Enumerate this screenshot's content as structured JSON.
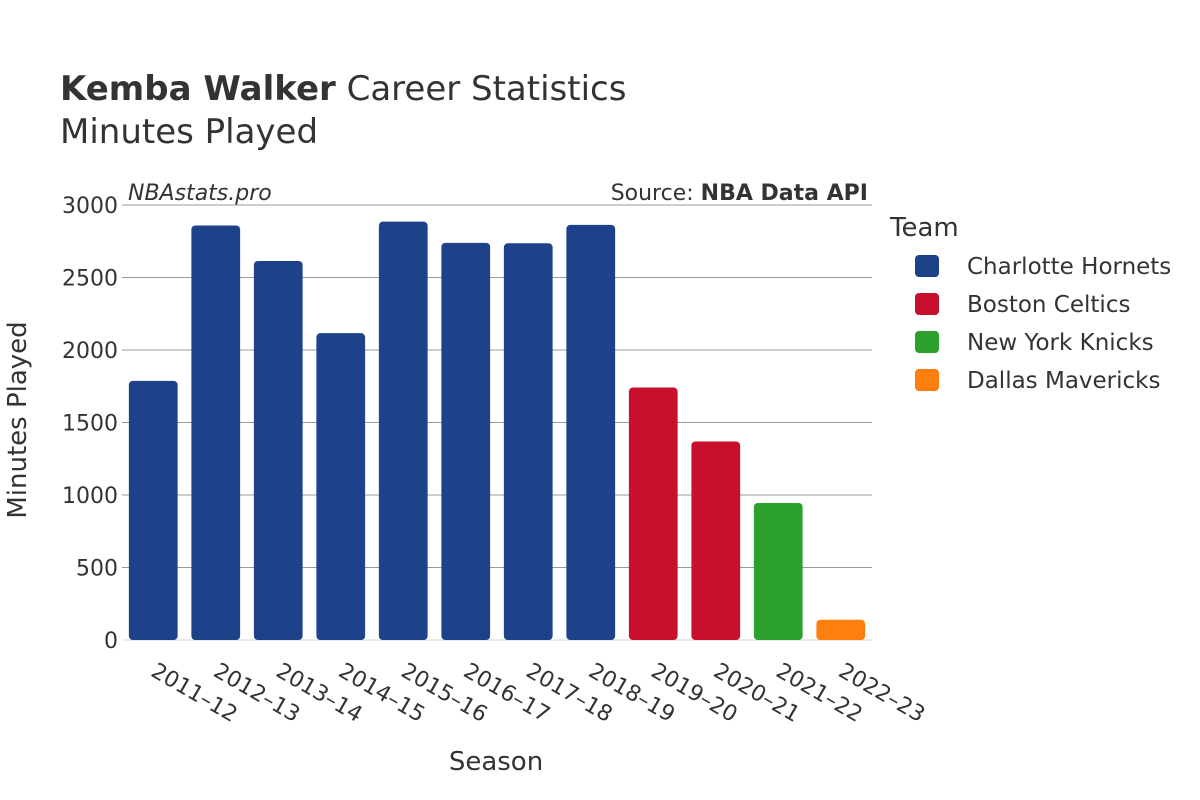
{
  "title": {
    "player": "Kemba Walker",
    "rest": " Career Statistics",
    "metric": "Minutes Played"
  },
  "watermark": "NBAstats.pro",
  "source": {
    "prefix": "Source: ",
    "name": "NBA Data API"
  },
  "legend_title": "Team",
  "teams": [
    {
      "name": "Charlotte Hornets",
      "color": "#1d428a"
    },
    {
      "name": "Boston Celtics",
      "color": "#c8102e"
    },
    {
      "name": "New York Knicks",
      "color": "#2ca02c"
    },
    {
      "name": "Dallas Mavericks",
      "color": "#ff7f0e"
    }
  ],
  "chart_data": {
    "type": "bar",
    "xlabel": "Season",
    "ylabel": "Minutes Played",
    "ylim": [
      0,
      3000
    ],
    "yticks": [
      0,
      500,
      1000,
      1500,
      2000,
      2500,
      3000
    ],
    "grid": true,
    "legend_position": "right",
    "categories": [
      "2011–12",
      "2012–13",
      "2013–14",
      "2014–15",
      "2015–16",
      "2016–17",
      "2017–18",
      "2018–19",
      "2019–20",
      "2020–21",
      "2021–22",
      "2022–23"
    ],
    "values": [
      1787,
      2859,
      2614,
      2116,
      2885,
      2739,
      2736,
      2863,
      1741,
      1369,
      945,
      140
    ],
    "teams": [
      "Charlotte Hornets",
      "Charlotte Hornets",
      "Charlotte Hornets",
      "Charlotte Hornets",
      "Charlotte Hornets",
      "Charlotte Hornets",
      "Charlotte Hornets",
      "Charlotte Hornets",
      "Boston Celtics",
      "Boston Celtics",
      "New York Knicks",
      "Dallas Mavericks"
    ]
  }
}
